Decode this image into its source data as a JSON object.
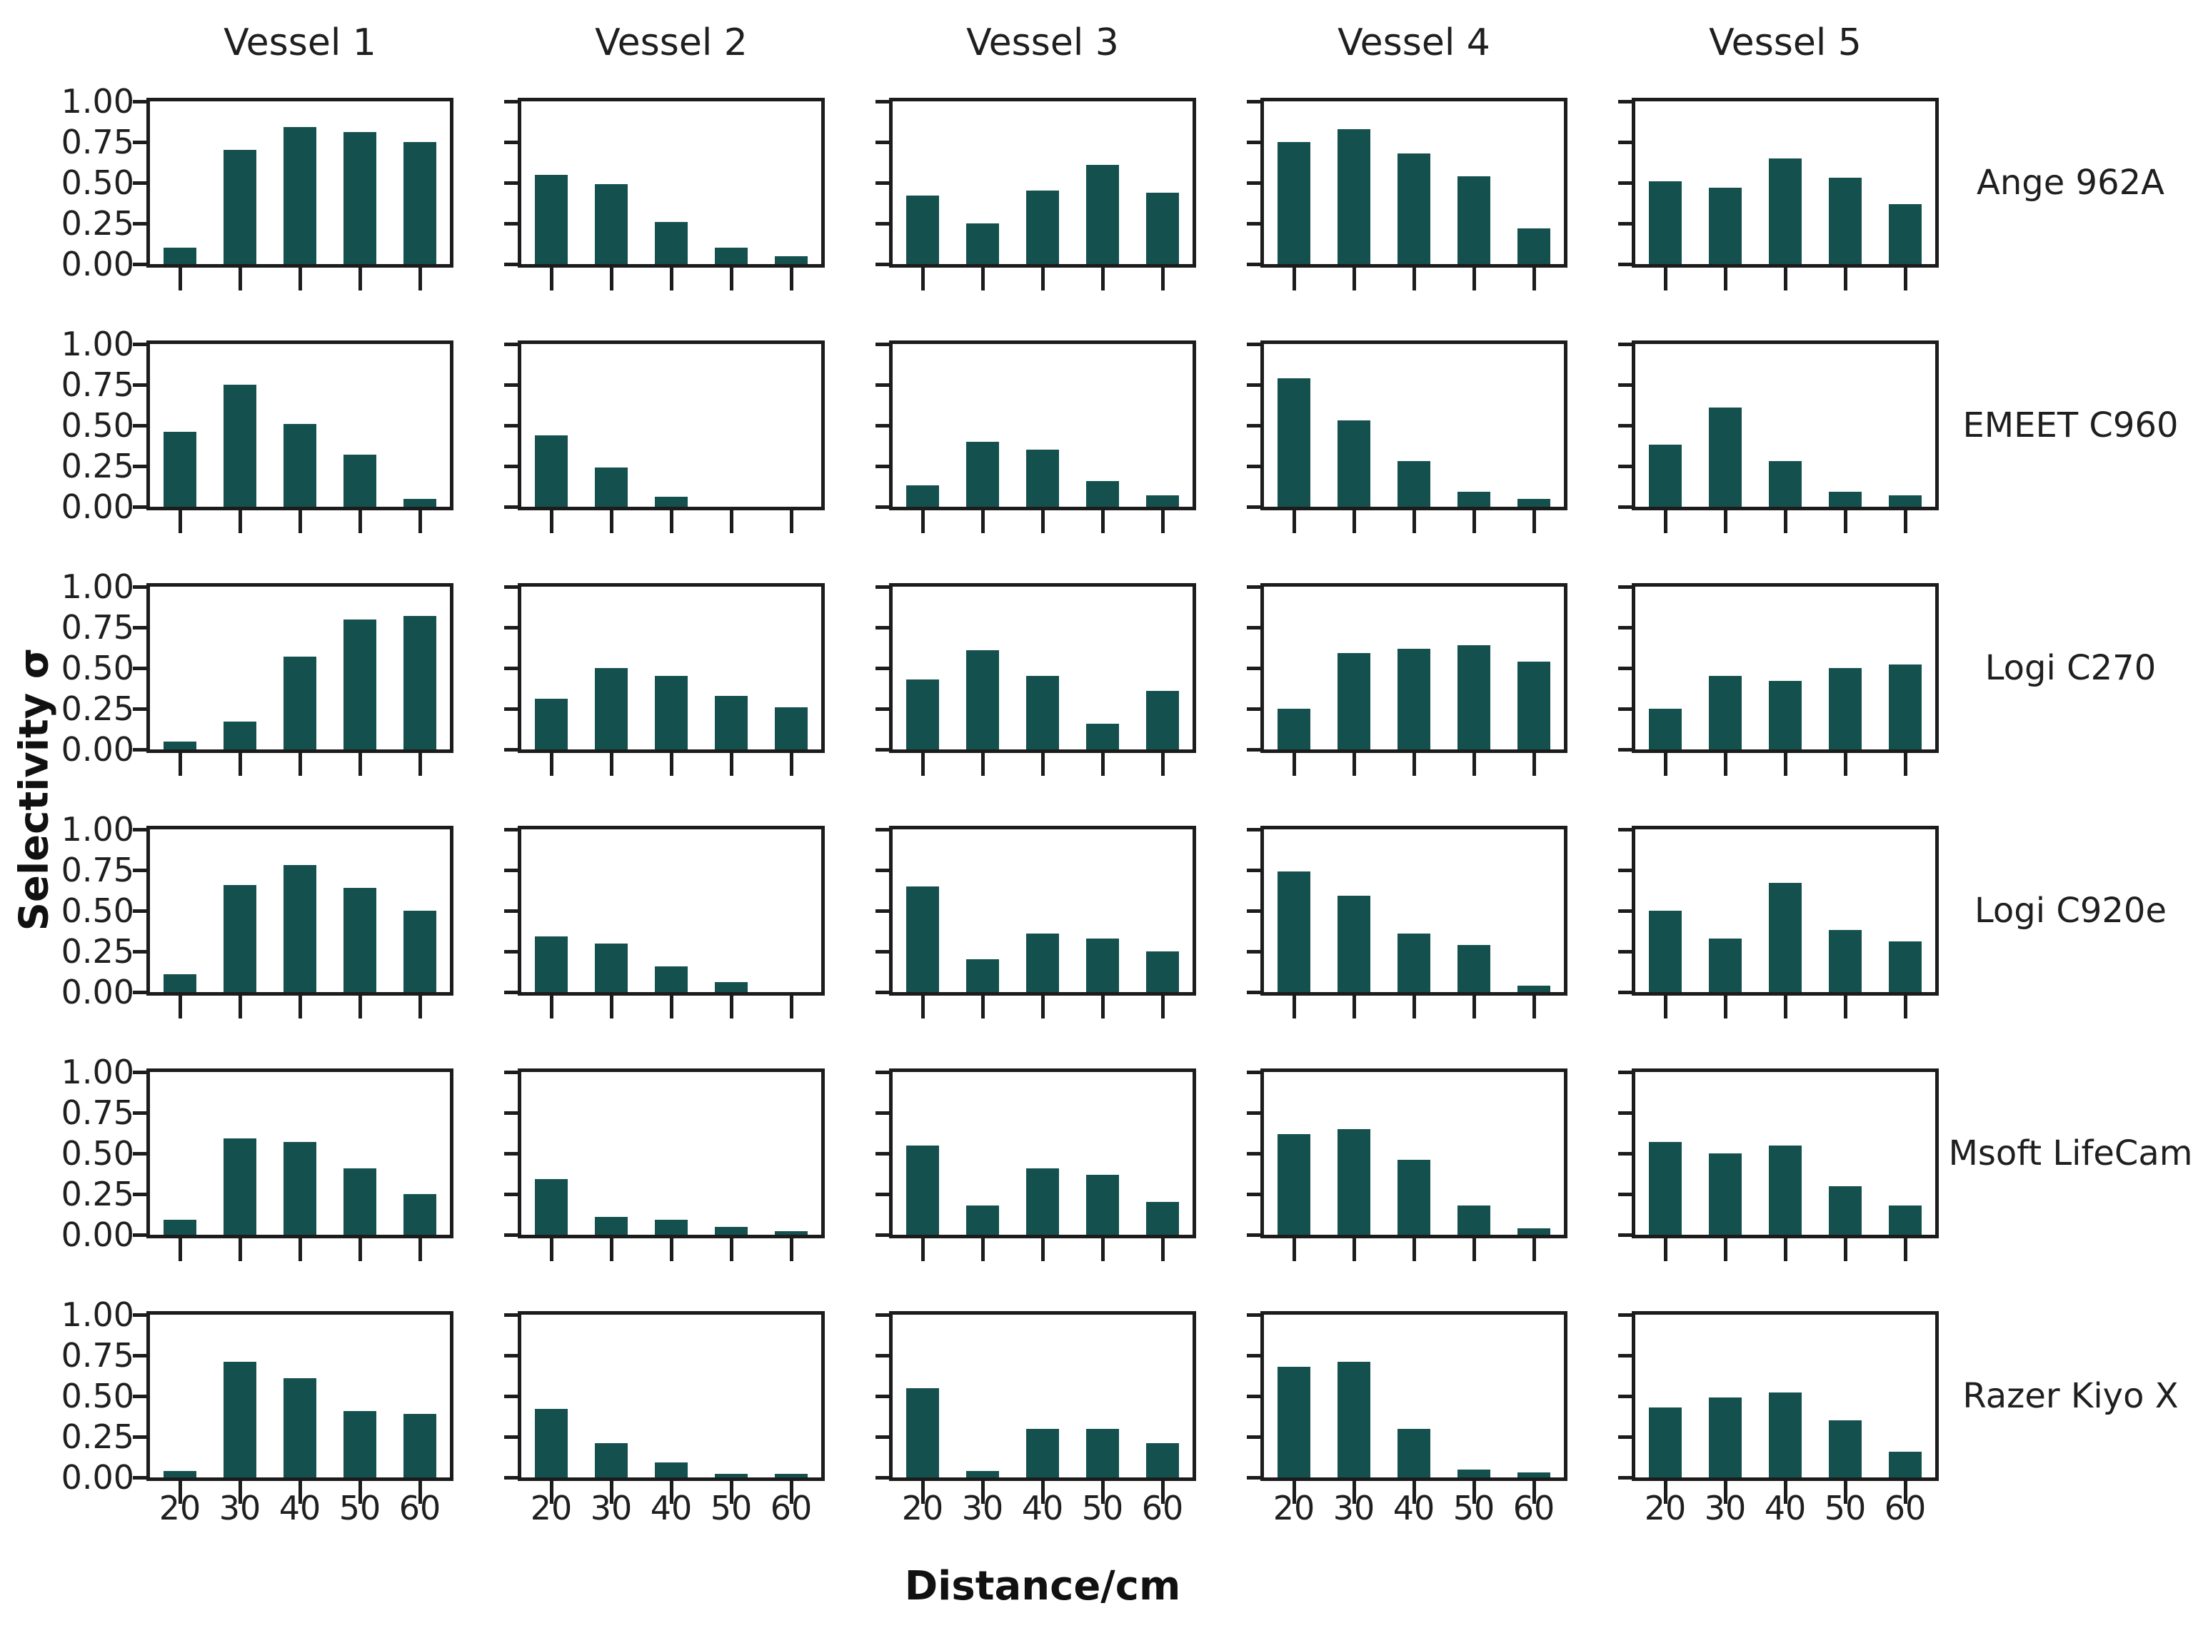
{
  "figure": {
    "column_titles": [
      "Vessel 1",
      "Vessel 2",
      "Vessel 3",
      "Vessel 4",
      "Vessel 5"
    ],
    "row_labels": [
      "Ange 962A",
      "EMEET C960",
      "Logi C270",
      "Logi C920e",
      "Msoft LifeCam",
      "Razer Kiyo X"
    ],
    "ylabel": "Selectivity σ",
    "xlabel": "Distance/cm",
    "ytick_labels": [
      "1.00",
      "0.75",
      "0.50",
      "0.25",
      "0.00"
    ],
    "xtick_labels": [
      "20",
      "30",
      "40",
      "50",
      "60"
    ],
    "colors": {
      "bar": "#14514e",
      "axis": "#1c1c1c",
      "text": "#1f1f1f"
    }
  },
  "chart_data": {
    "type": "bar",
    "layout": "grid of 6 device rows × 5 vessel columns, shared axes",
    "xlabel": "Distance/cm",
    "ylabel": "Selectivity σ",
    "x": [
      20,
      30,
      40,
      50,
      60
    ],
    "ylim": [
      0,
      1.0
    ],
    "yticks": [
      0.0,
      0.25,
      0.5,
      0.75,
      1.0
    ],
    "grid": false,
    "legend": "none",
    "columns": [
      "Vessel 1",
      "Vessel 2",
      "Vessel 3",
      "Vessel 4",
      "Vessel 5"
    ],
    "rows": [
      {
        "device": "Ange 962A",
        "values_by_vessel": [
          [
            0.1,
            0.7,
            0.84,
            0.81,
            0.75
          ],
          [
            0.55,
            0.49,
            0.26,
            0.1,
            0.05
          ],
          [
            0.42,
            0.25,
            0.45,
            0.61,
            0.44
          ],
          [
            0.75,
            0.83,
            0.68,
            0.54,
            0.22
          ],
          [
            0.51,
            0.47,
            0.65,
            0.53,
            0.37
          ]
        ]
      },
      {
        "device": "EMEET C960",
        "values_by_vessel": [
          [
            0.46,
            0.75,
            0.51,
            0.32,
            0.05
          ],
          [
            0.44,
            0.24,
            0.06,
            0.0,
            0.0
          ],
          [
            0.13,
            0.4,
            0.35,
            0.16,
            0.07
          ],
          [
            0.79,
            0.53,
            0.28,
            0.09,
            0.05
          ],
          [
            0.38,
            0.61,
            0.28,
            0.09,
            0.07
          ]
        ]
      },
      {
        "device": "Logi C270",
        "values_by_vessel": [
          [
            0.05,
            0.17,
            0.57,
            0.8,
            0.82
          ],
          [
            0.31,
            0.5,
            0.45,
            0.33,
            0.26
          ],
          [
            0.43,
            0.61,
            0.45,
            0.16,
            0.36
          ],
          [
            0.25,
            0.59,
            0.62,
            0.64,
            0.54
          ],
          [
            0.25,
            0.45,
            0.42,
            0.5,
            0.52
          ]
        ]
      },
      {
        "device": "Logi C920e",
        "values_by_vessel": [
          [
            0.11,
            0.66,
            0.78,
            0.64,
            0.5
          ],
          [
            0.34,
            0.3,
            0.16,
            0.06,
            0.0
          ],
          [
            0.65,
            0.2,
            0.36,
            0.33,
            0.25
          ],
          [
            0.74,
            0.59,
            0.36,
            0.29,
            0.04
          ],
          [
            0.5,
            0.33,
            0.67,
            0.38,
            0.31
          ]
        ]
      },
      {
        "device": "Msoft LifeCam",
        "values_by_vessel": [
          [
            0.09,
            0.59,
            0.57,
            0.41,
            0.25
          ],
          [
            0.34,
            0.11,
            0.09,
            0.05,
            0.02
          ],
          [
            0.55,
            0.18,
            0.41,
            0.37,
            0.2
          ],
          [
            0.62,
            0.65,
            0.46,
            0.18,
            0.04
          ],
          [
            0.57,
            0.5,
            0.55,
            0.3,
            0.18
          ]
        ]
      },
      {
        "device": "Razer Kiyo X",
        "values_by_vessel": [
          [
            0.04,
            0.71,
            0.61,
            0.41,
            0.39
          ],
          [
            0.42,
            0.21,
            0.09,
            0.02,
            0.02
          ],
          [
            0.55,
            0.04,
            0.3,
            0.3,
            0.21
          ],
          [
            0.68,
            0.71,
            0.3,
            0.05,
            0.03
          ],
          [
            0.43,
            0.49,
            0.52,
            0.35,
            0.16
          ]
        ]
      }
    ]
  }
}
